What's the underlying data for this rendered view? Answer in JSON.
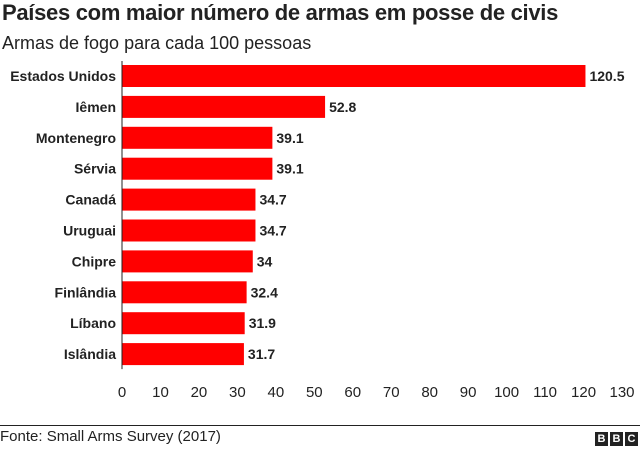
{
  "title": "Países com maior número de armas em posse de civis",
  "subtitle": "Armas de fogo para cada 100 pessoas",
  "source": "Fonte: Small Arms Survey (2017)",
  "logo": [
    "B",
    "B",
    "C"
  ],
  "colors": {
    "bar": "#ff0000",
    "text": "#222222",
    "axis": "#222222"
  },
  "chart_data": {
    "type": "bar",
    "orientation": "horizontal",
    "title": "Países com maior número de armas em posse de civis",
    "subtitle": "Armas de fogo para cada 100 pessoas",
    "categories": [
      "Estados Unidos",
      "Iêmen",
      "Montenegro",
      "Sérvia",
      "Canadá",
      "Uruguai",
      "Chipre",
      "Finlândia",
      "Líbano",
      "Islândia"
    ],
    "values": [
      120.5,
      52.8,
      39.1,
      39.1,
      34.7,
      34.7,
      34,
      32.4,
      31.9,
      31.7
    ],
    "value_labels": [
      "120.5",
      "52.8",
      "39.1",
      "39.1",
      "34.7",
      "34.7",
      "34",
      "32.4",
      "31.9",
      "31.7"
    ],
    "xlim": [
      0,
      130
    ],
    "xticks": [
      0,
      10,
      20,
      30,
      40,
      50,
      60,
      70,
      80,
      90,
      100,
      110,
      120,
      130
    ],
    "grid": false,
    "legend": "none"
  }
}
